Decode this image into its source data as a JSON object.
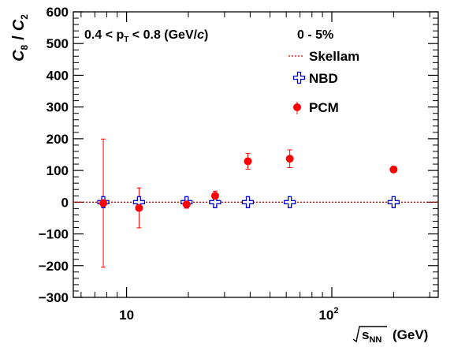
{
  "chart_data": {
    "type": "scatter",
    "x_scale": "log",
    "xlim": [
      5.5,
      330
    ],
    "ylim": [
      -300,
      600
    ],
    "grid": false,
    "legend_placement": "top-right",
    "xlabel": {
      "radical": "s",
      "subscript": "NN",
      "unit": "(GeV)"
    },
    "ylabel": {
      "num": "C",
      "num_sub": "8",
      "sep": "/",
      "den": "C",
      "den_sub": "2"
    },
    "y_ticks": [
      600,
      500,
      400,
      300,
      200,
      100,
      0,
      -100,
      -200,
      -300
    ],
    "y_tick_labels": [
      "600",
      "500",
      "400",
      "300",
      "200",
      "100",
      "0",
      "−100",
      "−200",
      "−300"
    ],
    "x_major_ticks": [
      10,
      100
    ],
    "x_minor_ticks": [
      6,
      7,
      8,
      9,
      20,
      30,
      40,
      50,
      60,
      70,
      80,
      90,
      200,
      300
    ],
    "x_tick_labels": {
      "ten": "10",
      "hundred_base": "10",
      "hundred_exp": "2"
    },
    "annotations": {
      "pt_range": {
        "pre": "0.4 < p",
        "sub": "T",
        "mid": " < 0.8 (GeV/",
        "ital": "c",
        "post": ")"
      },
      "centrality": "0 - 5%"
    },
    "series": [
      {
        "name": "Skellam",
        "kind": "line",
        "color": "#dd0000",
        "y": 0
      },
      {
        "name": "NBD",
        "kind": "marker",
        "marker": "open-cross",
        "color": "#0000cc",
        "x": [
          7.7,
          11.5,
          19.6,
          27,
          39,
          62.4,
          200
        ],
        "y": [
          0,
          0,
          0,
          0,
          0,
          0,
          0
        ]
      },
      {
        "name": "PCM",
        "kind": "marker",
        "marker": "filled-circle",
        "color": "#ff0000",
        "x": [
          7.7,
          11.5,
          19.6,
          27,
          39,
          62.4,
          200
        ],
        "y": [
          -3,
          -18,
          -7,
          20,
          129,
          137,
          103
        ],
        "err": [
          202,
          63,
          12,
          15,
          25,
          28,
          0
        ]
      }
    ],
    "legend": [
      "Skellam",
      "NBD",
      "PCM"
    ]
  }
}
